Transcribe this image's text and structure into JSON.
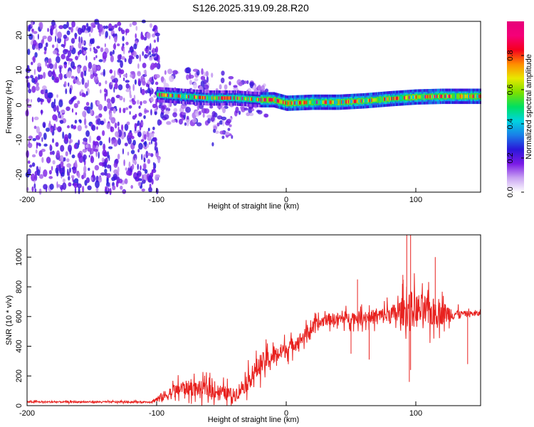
{
  "title": "S126.2025.319.09.28.R20",
  "colors": {
    "line": "#e8221f",
    "axis": "#000000",
    "background": "#ffffff"
  },
  "chart_data": [
    {
      "type": "heatmap",
      "xlabel": "Height of straight line (km)",
      "ylabel": "Frequency (Hz)",
      "xlim": [
        -200,
        150
      ],
      "ylim": [
        -25,
        24
      ],
      "xticks": [
        "-200",
        "-100",
        "0",
        "100"
      ],
      "xtick_values": [
        -200,
        -100,
        0,
        100
      ],
      "yticks": [
        "-20",
        "-10",
        "0",
        "10",
        "20"
      ],
      "ytick_values": [
        -20,
        -10,
        0,
        10,
        20
      ],
      "colorbar": {
        "label": "Normalized spectral amplitude",
        "range": [
          0.0,
          1.0
        ],
        "ticks": [
          "0.0",
          "0.2",
          "0.4",
          "0.6",
          "0.8"
        ],
        "tick_values": [
          0.0,
          0.2,
          0.4,
          0.6,
          0.8
        ],
        "stops": [
          "#ffffff",
          "#c9a3f2",
          "#7a1ae6",
          "#2a17d9",
          "#1a7fe8",
          "#00d4e0",
          "#00e060",
          "#7be000",
          "#e8e800",
          "#ff8c00",
          "#f5001e",
          "#f50078",
          "#e6007a"
        ]
      },
      "ridge": [
        {
          "x": -100,
          "f": 3
        },
        {
          "x": -80,
          "f": 2.5
        },
        {
          "x": -60,
          "f": 2
        },
        {
          "x": -40,
          "f": 2
        },
        {
          "x": -20,
          "f": 1.5
        },
        {
          "x": -10,
          "f": 1.5
        },
        {
          "x": 0,
          "f": 0.5
        },
        {
          "x": 20,
          "f": 0.8
        },
        {
          "x": 40,
          "f": 0.8
        },
        {
          "x": 60,
          "f": 1.2
        },
        {
          "x": 80,
          "f": 1.8
        },
        {
          "x": 100,
          "f": 2.3
        },
        {
          "x": 120,
          "f": 2.5
        },
        {
          "x": 150,
          "f": 2.5
        }
      ]
    },
    {
      "type": "line",
      "xlabel": "Height of straight line (km)",
      "ylabel": "SNR (10 * v/v)",
      "xlim": [
        -200,
        150
      ],
      "ylim": [
        0,
        1150
      ],
      "xticks": [
        "-200",
        "-100",
        "0",
        "100"
      ],
      "xtick_values": [
        -200,
        -100,
        0,
        100
      ],
      "yticks": [
        "0",
        "200",
        "400",
        "600",
        "800",
        "1000"
      ],
      "ytick_values": [
        0,
        200,
        400,
        600,
        800,
        1000
      ],
      "envelope": [
        {
          "x": -200,
          "base": 25,
          "noise": 12
        },
        {
          "x": -105,
          "base": 25,
          "noise": 12
        },
        {
          "x": -95,
          "base": 60,
          "noise": 80
        },
        {
          "x": -80,
          "base": 120,
          "noise": 110
        },
        {
          "x": -60,
          "base": 110,
          "noise": 120
        },
        {
          "x": -40,
          "base": 70,
          "noise": 100
        },
        {
          "x": -30,
          "base": 160,
          "noise": 140
        },
        {
          "x": -20,
          "base": 280,
          "noise": 160
        },
        {
          "x": -10,
          "base": 330,
          "noise": 130
        },
        {
          "x": 0,
          "base": 380,
          "noise": 120
        },
        {
          "x": 10,
          "base": 440,
          "noise": 100
        },
        {
          "x": 20,
          "base": 520,
          "noise": 100
        },
        {
          "x": 30,
          "base": 580,
          "noise": 90
        },
        {
          "x": 50,
          "base": 590,
          "noise": 90
        },
        {
          "x": 70,
          "base": 600,
          "noise": 110
        },
        {
          "x": 85,
          "base": 620,
          "noise": 160
        },
        {
          "x": 95,
          "base": 650,
          "noise": 280
        },
        {
          "x": 110,
          "base": 630,
          "noise": 240
        },
        {
          "x": 125,
          "base": 620,
          "noise": 140
        },
        {
          "x": 135,
          "base": 620,
          "noise": 40
        },
        {
          "x": 150,
          "base": 620,
          "noise": 40
        }
      ],
      "spikes": [
        {
          "x": 93,
          "y": 1150
        },
        {
          "x": 96,
          "y": 1150
        },
        {
          "x": 115,
          "y": 1000
        },
        {
          "x": 90,
          "y": 880
        },
        {
          "x": 95,
          "y": 160
        },
        {
          "x": 96,
          "y": 240
        },
        {
          "x": 64,
          "y": 310
        },
        {
          "x": 50,
          "y": 350
        },
        {
          "x": 55,
          "y": 850
        },
        {
          "x": 140,
          "y": 280
        }
      ]
    }
  ]
}
